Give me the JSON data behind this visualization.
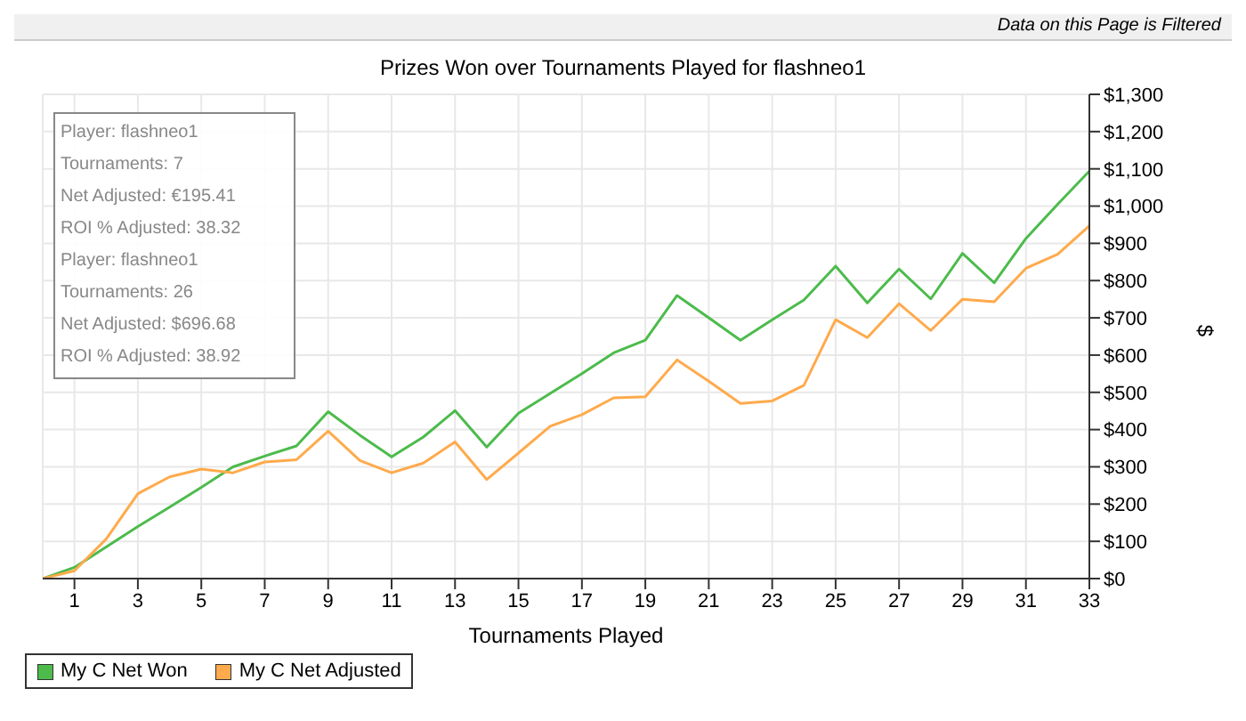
{
  "chart_data": {
    "type": "line",
    "title": "Prizes Won over Tournaments Played for flashneo1",
    "xlabel": "Tournaments Played",
    "ylabel": "$",
    "annotations": [
      "Data on this Page is Filtered",
      "Player: flashneo1",
      "Tournaments: 7",
      "Net Adjusted: €195.41",
      "ROI % Adjusted: 38.32",
      "Player: flashneo1",
      "Tournaments: 26",
      "Net Adjusted: $696.68",
      "ROI % Adjusted: 38.92"
    ],
    "x": [
      0,
      1,
      2,
      3,
      4,
      5,
      6,
      7,
      8,
      9,
      10,
      11,
      12,
      13,
      14,
      15,
      16,
      17,
      18,
      19,
      20,
      21,
      22,
      23,
      24,
      25,
      26,
      27,
      28,
      29,
      30,
      31,
      32,
      33
    ],
    "series": [
      {
        "name": "My C Net Won",
        "color": "#4cbb4c",
        "values": [
          0,
          30,
          85,
          140,
          192,
          245,
          300,
          329,
          356,
          448,
          385,
          327,
          380,
          451,
          353,
          444,
          497,
          550,
          606,
          640,
          760,
          700,
          640,
          695,
          748,
          839,
          740,
          831,
          751,
          873,
          794,
          913,
          1005,
          1094
        ]
      },
      {
        "name": "My C Net Adjusted",
        "color": "#ffaa4c",
        "values": [
          0,
          21,
          106,
          228,
          273,
          294,
          284,
          313,
          319,
          396,
          317,
          284,
          310,
          367,
          266,
          337,
          409,
          440,
          485,
          488,
          587,
          530,
          470,
          477,
          519,
          695,
          647,
          738,
          666,
          750,
          743,
          833,
          871,
          947
        ]
      }
    ],
    "xlim": [
      0,
      33
    ],
    "xticks": [
      1,
      3,
      5,
      7,
      9,
      11,
      13,
      15,
      17,
      19,
      21,
      23,
      25,
      27,
      29,
      31,
      33
    ],
    "ylim": [
      0,
      1300
    ],
    "yticks": [
      {
        "value": 0,
        "label": "$0"
      },
      {
        "value": 100,
        "label": "$100"
      },
      {
        "value": 200,
        "label": "$200"
      },
      {
        "value": 300,
        "label": "$300"
      },
      {
        "value": 400,
        "label": "$400"
      },
      {
        "value": 500,
        "label": "$500"
      },
      {
        "value": 600,
        "label": "$600"
      },
      {
        "value": 700,
        "label": "$700"
      },
      {
        "value": 800,
        "label": "$800"
      },
      {
        "value": 900,
        "label": "$900"
      },
      {
        "value": 1000,
        "label": "$1,000"
      },
      {
        "value": 1100,
        "label": "$1,100"
      },
      {
        "value": 1200,
        "label": "$1,200"
      },
      {
        "value": 1300,
        "label": "$1,300"
      }
    ],
    "grid": true,
    "legend": "bottom left",
    "marker": "none",
    "line_style": "solid"
  }
}
